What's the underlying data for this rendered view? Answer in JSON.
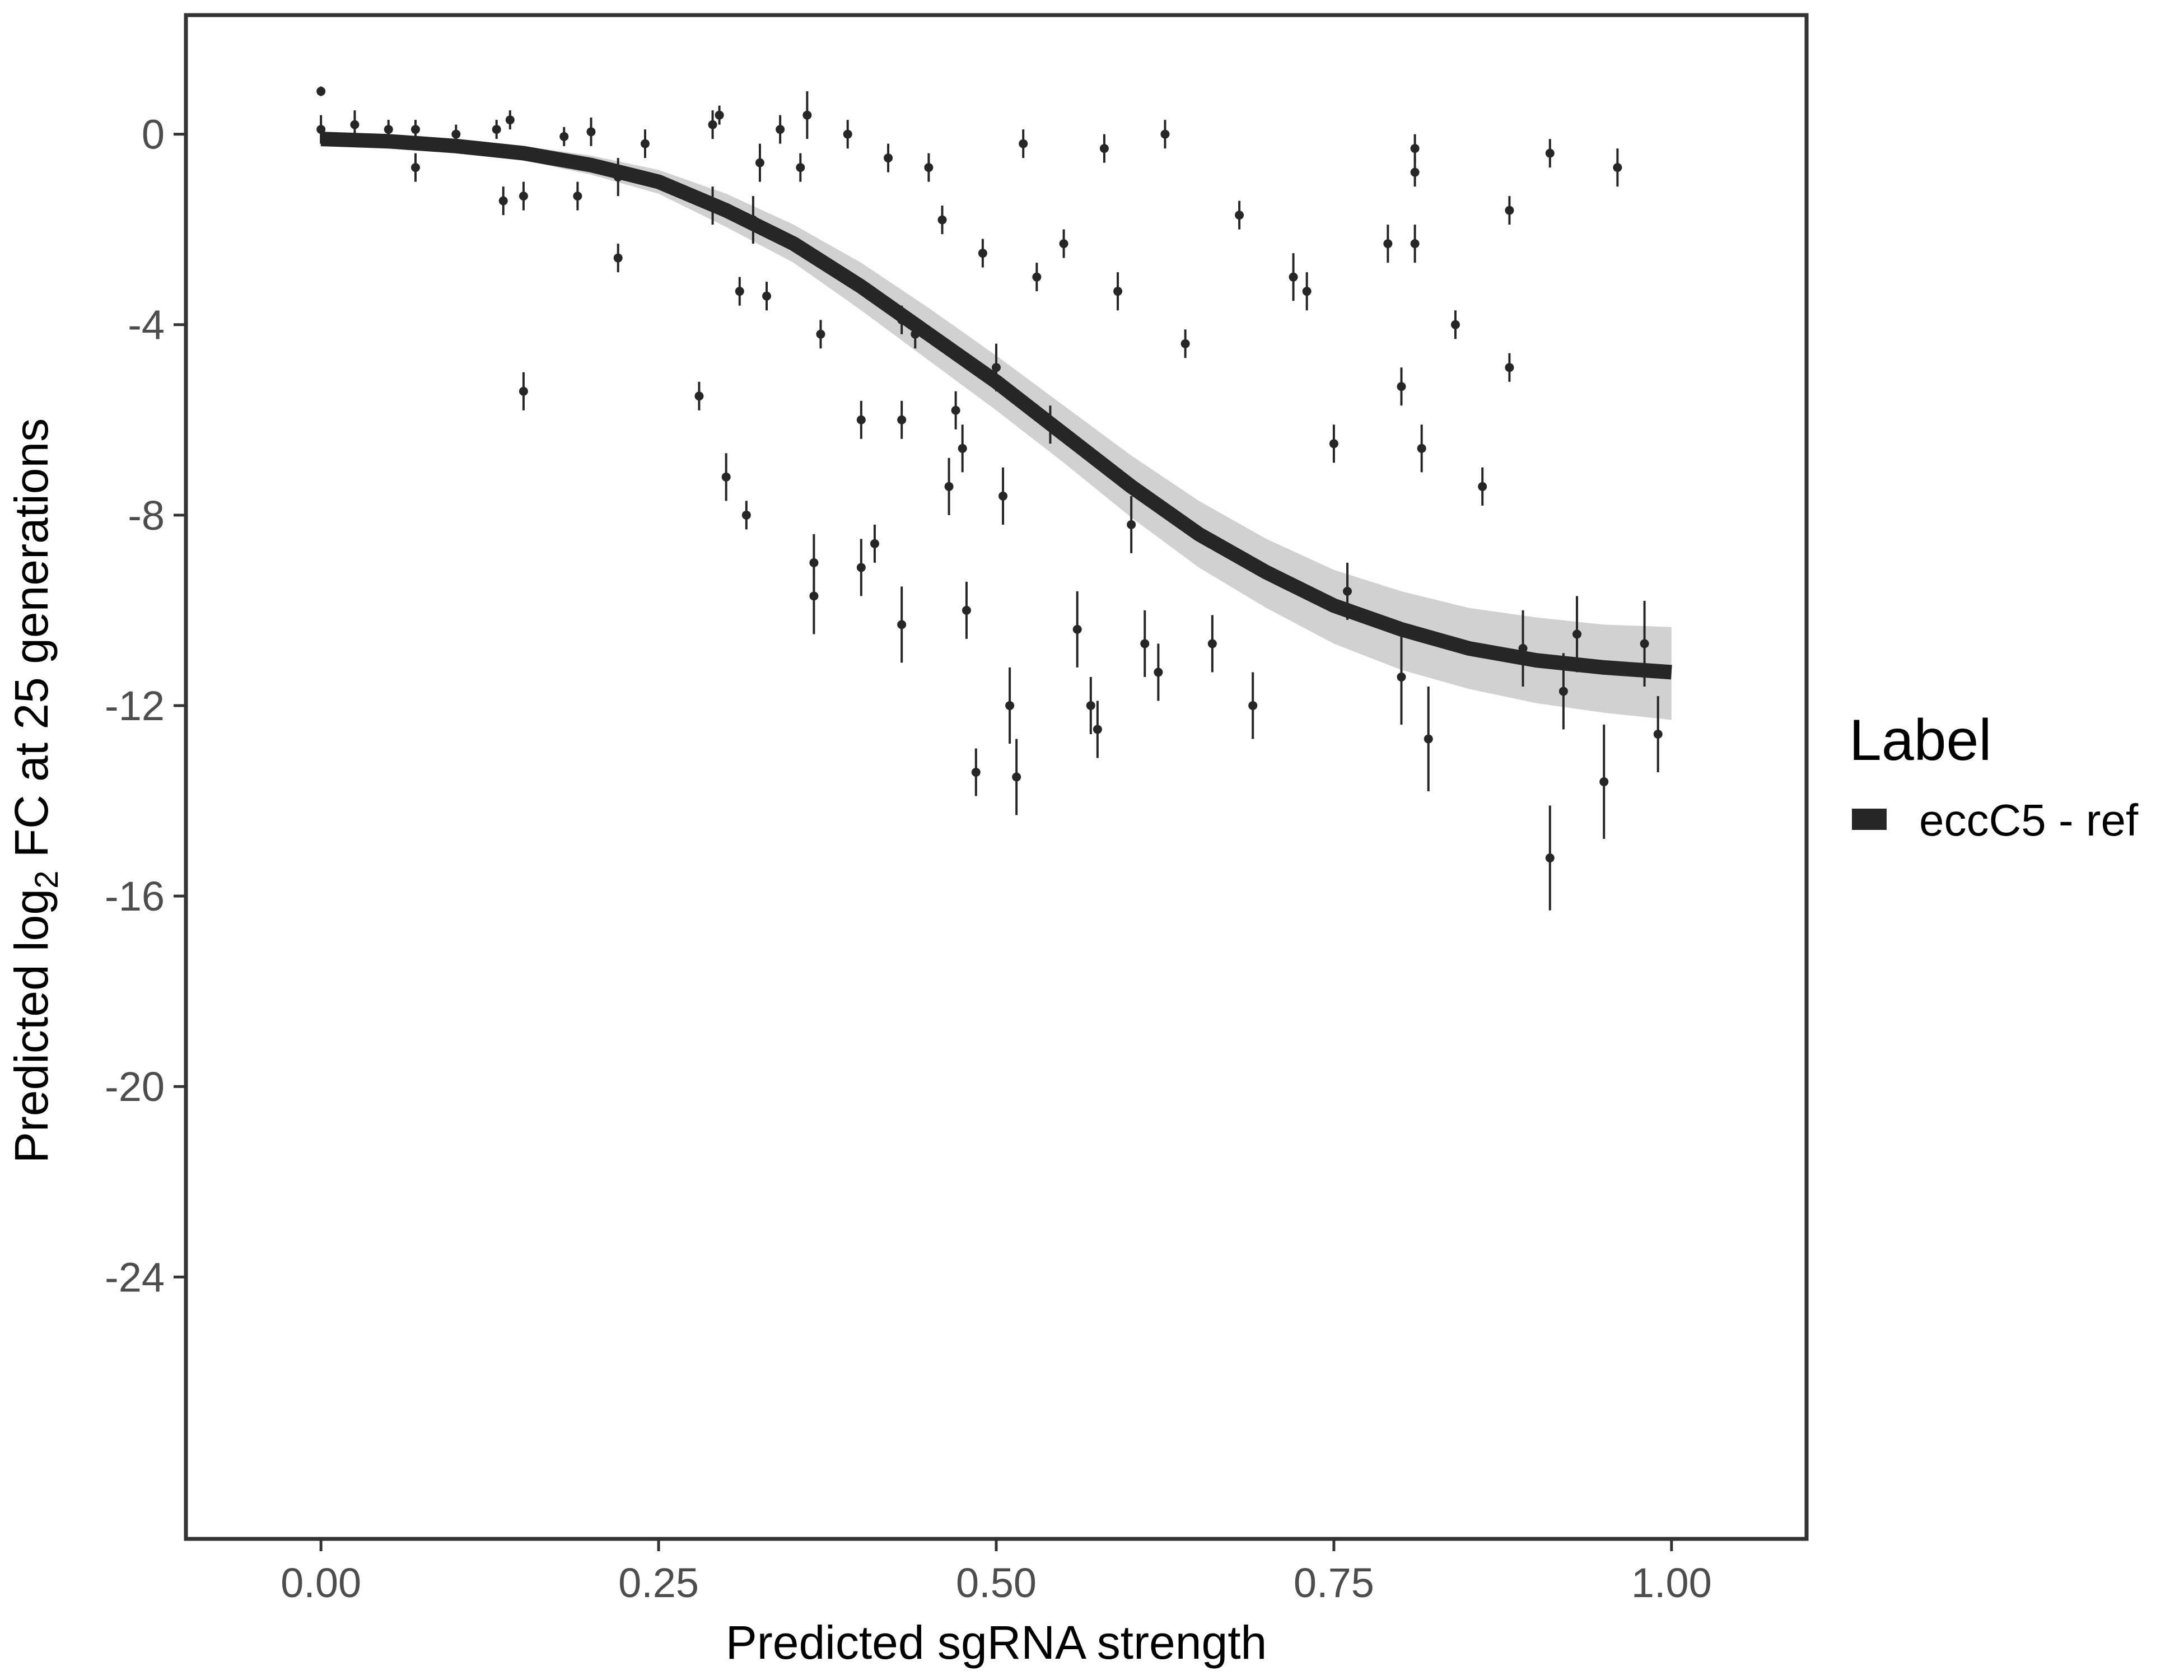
{
  "chart_data": {
    "type": "scatter",
    "xlabel": "Predicted sgRNA strength",
    "ylabel": {
      "prefix": "Predicted  log",
      "subscript": "2",
      "suffix": " FC at 25 generations"
    },
    "xlim": [
      -0.1,
      1.1
    ],
    "ylim": [
      -29.5,
      2.5
    ],
    "x_ticks": [
      0.0,
      0.25,
      0.5,
      0.75,
      1.0
    ],
    "x_tick_labels": [
      "0.00",
      "0.25",
      "0.50",
      "0.75",
      "1.00"
    ],
    "y_ticks": [
      0,
      -4,
      -8,
      -12,
      -16,
      -20,
      -24
    ],
    "y_tick_labels": [
      "0",
      "-4",
      "-8",
      "-12",
      "-16",
      "-20",
      "-24"
    ],
    "grid": false,
    "legend": {
      "title": "Label",
      "placement": "right",
      "entries": [
        {
          "name": "eccC5 - ref",
          "color": "#262626"
        }
      ]
    },
    "colors": {
      "main": "#262626",
      "ribbon": "#9a9a9a",
      "axis_text": "#4d4d4d",
      "frame": "#333333"
    },
    "fit": {
      "name": "eccC5 - ref",
      "x": [
        0.0,
        0.05,
        0.1,
        0.15,
        0.2,
        0.25,
        0.3,
        0.35,
        0.4,
        0.45,
        0.5,
        0.55,
        0.6,
        0.65,
        0.7,
        0.75,
        0.8,
        0.85,
        0.9,
        0.95,
        1.0
      ],
      "y": [
        -0.1,
        -0.15,
        -0.25,
        -0.4,
        -0.65,
        -1.0,
        -1.6,
        -2.3,
        -3.2,
        -4.2,
        -5.2,
        -6.3,
        -7.4,
        -8.4,
        -9.2,
        -9.9,
        -10.4,
        -10.8,
        -11.05,
        -11.2,
        -11.3
      ],
      "band_low": [
        -0.05,
        -0.1,
        -0.15,
        -0.25,
        -0.45,
        -0.75,
        -1.25,
        -1.9,
        -2.7,
        -3.65,
        -4.65,
        -5.7,
        -6.75,
        -7.7,
        -8.5,
        -9.15,
        -9.6,
        -9.95,
        -10.15,
        -10.3,
        -10.35
      ],
      "band_high": [
        -0.15,
        -0.2,
        -0.35,
        -0.55,
        -0.85,
        -1.25,
        -1.95,
        -2.7,
        -3.7,
        -4.75,
        -5.8,
        -6.9,
        -8.05,
        -9.1,
        -9.95,
        -10.7,
        -11.25,
        -11.65,
        -11.95,
        -12.15,
        -12.3
      ]
    },
    "points": [
      {
        "x": 0.0,
        "y": 0.1,
        "err": 0.3
      },
      {
        "x": 0.0,
        "y": 0.9,
        "err": 0.1
      },
      {
        "x": 0.025,
        "y": 0.2,
        "err": 0.3
      },
      {
        "x": 0.05,
        "y": 0.1,
        "err": 0.2
      },
      {
        "x": 0.07,
        "y": -0.7,
        "err": 0.3
      },
      {
        "x": 0.07,
        "y": 0.1,
        "err": 0.2
      },
      {
        "x": 0.1,
        "y": 0.0,
        "err": 0.2
      },
      {
        "x": 0.13,
        "y": 0.1,
        "err": 0.2
      },
      {
        "x": 0.14,
        "y": 0.3,
        "err": 0.2
      },
      {
        "x": 0.135,
        "y": -1.4,
        "err": 0.3
      },
      {
        "x": 0.15,
        "y": -1.3,
        "err": 0.3
      },
      {
        "x": 0.15,
        "y": -5.4,
        "err": 0.4
      },
      {
        "x": 0.18,
        "y": -0.05,
        "err": 0.2
      },
      {
        "x": 0.2,
        "y": 0.05,
        "err": 0.3
      },
      {
        "x": 0.19,
        "y": -1.3,
        "err": 0.3
      },
      {
        "x": 0.22,
        "y": -0.9,
        "err": 0.4
      },
      {
        "x": 0.22,
        "y": -2.6,
        "err": 0.3
      },
      {
        "x": 0.24,
        "y": -0.2,
        "err": 0.3
      },
      {
        "x": 0.28,
        "y": -5.5,
        "err": 0.3
      },
      {
        "x": 0.29,
        "y": 0.2,
        "err": 0.3
      },
      {
        "x": 0.295,
        "y": 0.4,
        "err": 0.2
      },
      {
        "x": 0.29,
        "y": -1.5,
        "err": 0.4
      },
      {
        "x": 0.3,
        "y": -7.2,
        "err": 0.5
      },
      {
        "x": 0.31,
        "y": -3.3,
        "err": 0.3
      },
      {
        "x": 0.315,
        "y": -8.0,
        "err": 0.3
      },
      {
        "x": 0.32,
        "y": -1.8,
        "err": 0.5
      },
      {
        "x": 0.325,
        "y": -0.6,
        "err": 0.4
      },
      {
        "x": 0.33,
        "y": -3.4,
        "err": 0.3
      },
      {
        "x": 0.34,
        "y": 0.1,
        "err": 0.3
      },
      {
        "x": 0.36,
        "y": 0.4,
        "err": 0.5
      },
      {
        "x": 0.355,
        "y": -0.7,
        "err": 0.3
      },
      {
        "x": 0.37,
        "y": -4.2,
        "err": 0.3
      },
      {
        "x": 0.365,
        "y": -9.0,
        "err": 0.6
      },
      {
        "x": 0.365,
        "y": -9.7,
        "err": 0.8
      },
      {
        "x": 0.39,
        "y": 0.0,
        "err": 0.3
      },
      {
        "x": 0.4,
        "y": -6.0,
        "err": 0.4
      },
      {
        "x": 0.4,
        "y": -9.1,
        "err": 0.6
      },
      {
        "x": 0.41,
        "y": -8.6,
        "err": 0.4
      },
      {
        "x": 0.42,
        "y": -0.5,
        "err": 0.3
      },
      {
        "x": 0.43,
        "y": -3.9,
        "err": 0.3
      },
      {
        "x": 0.43,
        "y": -6.0,
        "err": 0.4
      },
      {
        "x": 0.43,
        "y": -10.3,
        "err": 0.8
      },
      {
        "x": 0.44,
        "y": -4.2,
        "err": 0.3
      },
      {
        "x": 0.45,
        "y": -0.7,
        "err": 0.3
      },
      {
        "x": 0.46,
        "y": -1.8,
        "err": 0.3
      },
      {
        "x": 0.465,
        "y": -7.4,
        "err": 0.6
      },
      {
        "x": 0.47,
        "y": -5.8,
        "err": 0.4
      },
      {
        "x": 0.475,
        "y": -6.6,
        "err": 0.5
      },
      {
        "x": 0.478,
        "y": -10.0,
        "err": 0.6
      },
      {
        "x": 0.485,
        "y": -13.4,
        "err": 0.5
      },
      {
        "x": 0.49,
        "y": -2.5,
        "err": 0.3
      },
      {
        "x": 0.5,
        "y": -4.9,
        "err": 0.5
      },
      {
        "x": 0.505,
        "y": -7.6,
        "err": 0.6
      },
      {
        "x": 0.51,
        "y": -12.0,
        "err": 0.8
      },
      {
        "x": 0.515,
        "y": -13.5,
        "err": 0.8
      },
      {
        "x": 0.52,
        "y": -0.2,
        "err": 0.3
      },
      {
        "x": 0.53,
        "y": -3.0,
        "err": 0.3
      },
      {
        "x": 0.54,
        "y": -6.1,
        "err": 0.4
      },
      {
        "x": 0.55,
        "y": -2.3,
        "err": 0.3
      },
      {
        "x": 0.56,
        "y": -10.4,
        "err": 0.8
      },
      {
        "x": 0.57,
        "y": -12.0,
        "err": 0.6
      },
      {
        "x": 0.575,
        "y": -12.5,
        "err": 0.6
      },
      {
        "x": 0.58,
        "y": -0.3,
        "err": 0.3
      },
      {
        "x": 0.59,
        "y": -3.3,
        "err": 0.4
      },
      {
        "x": 0.6,
        "y": -8.2,
        "err": 0.6
      },
      {
        "x": 0.61,
        "y": -10.7,
        "err": 0.7
      },
      {
        "x": 0.62,
        "y": -11.3,
        "err": 0.6
      },
      {
        "x": 0.625,
        "y": 0.0,
        "err": 0.3
      },
      {
        "x": 0.64,
        "y": -4.4,
        "err": 0.3
      },
      {
        "x": 0.66,
        "y": -10.7,
        "err": 0.6
      },
      {
        "x": 0.68,
        "y": -1.7,
        "err": 0.3
      },
      {
        "x": 0.69,
        "y": -12.0,
        "err": 0.7
      },
      {
        "x": 0.72,
        "y": -3.0,
        "err": 0.5
      },
      {
        "x": 0.73,
        "y": -3.3,
        "err": 0.4
      },
      {
        "x": 0.75,
        "y": -6.5,
        "err": 0.4
      },
      {
        "x": 0.76,
        "y": -9.6,
        "err": 0.6
      },
      {
        "x": 0.79,
        "y": -2.3,
        "err": 0.4
      },
      {
        "x": 0.8,
        "y": -5.3,
        "err": 0.4
      },
      {
        "x": 0.8,
        "y": -11.4,
        "err": 1.0
      },
      {
        "x": 0.81,
        "y": -0.3,
        "err": 0.3
      },
      {
        "x": 0.81,
        "y": -0.8,
        "err": 0.3
      },
      {
        "x": 0.81,
        "y": -2.3,
        "err": 0.4
      },
      {
        "x": 0.815,
        "y": -6.6,
        "err": 0.5
      },
      {
        "x": 0.82,
        "y": -12.7,
        "err": 1.1
      },
      {
        "x": 0.84,
        "y": -4.0,
        "err": 0.3
      },
      {
        "x": 0.86,
        "y": -7.4,
        "err": 0.4
      },
      {
        "x": 0.88,
        "y": -4.9,
        "err": 0.3
      },
      {
        "x": 0.88,
        "y": -1.6,
        "err": 0.3
      },
      {
        "x": 0.89,
        "y": -10.8,
        "err": 0.8
      },
      {
        "x": 0.91,
        "y": -15.2,
        "err": 1.1
      },
      {
        "x": 0.91,
        "y": -0.4,
        "err": 0.3
      },
      {
        "x": 0.92,
        "y": -11.7,
        "err": 0.8
      },
      {
        "x": 0.93,
        "y": -10.5,
        "err": 0.8
      },
      {
        "x": 0.95,
        "y": -13.6,
        "err": 1.2
      },
      {
        "x": 0.96,
        "y": -0.7,
        "err": 0.4
      },
      {
        "x": 0.98,
        "y": -10.7,
        "err": 0.9
      },
      {
        "x": 0.99,
        "y": -12.6,
        "err": 0.8
      }
    ]
  }
}
